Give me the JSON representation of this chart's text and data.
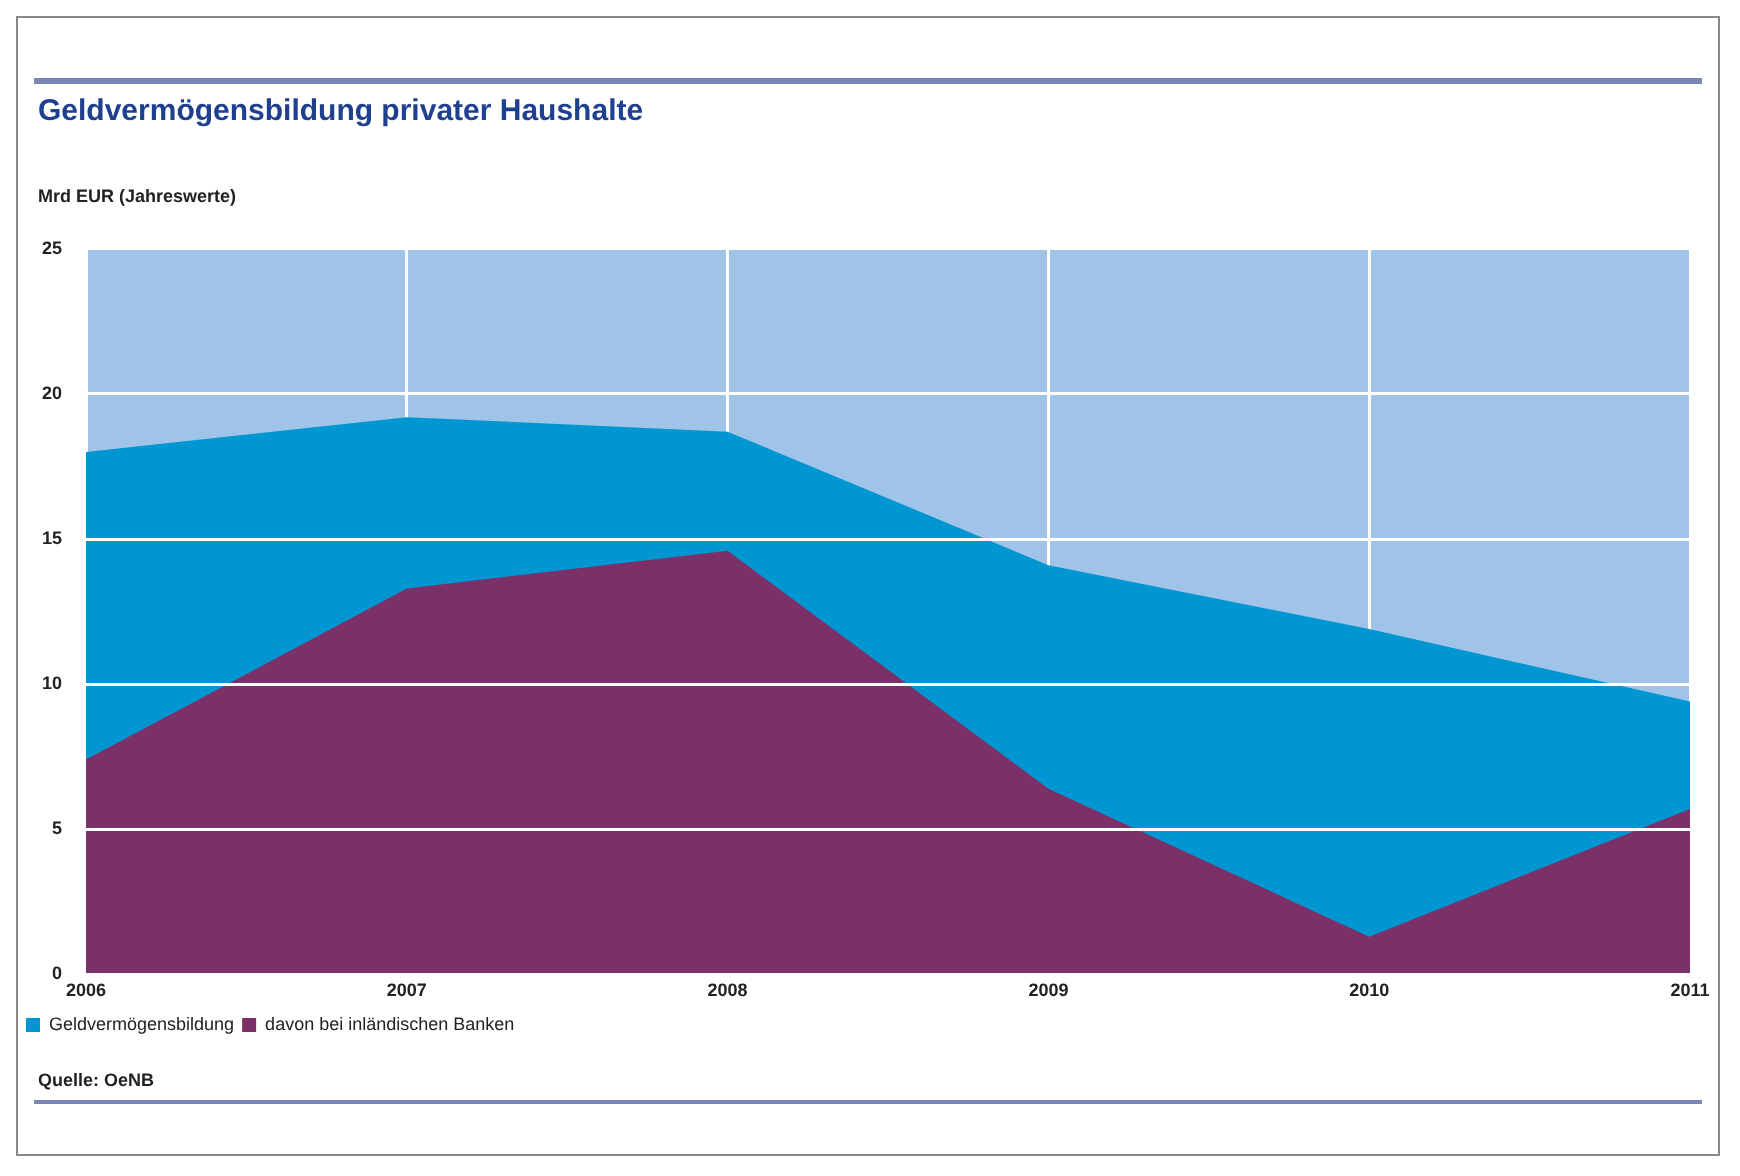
{
  "chart_data": {
    "type": "area",
    "title": "Geldvermögensbildung privater Haushalte",
    "ylabel": "Mrd EUR (Jahreswerte)",
    "categories": [
      "2006",
      "2007",
      "2008",
      "2009",
      "2010",
      "2011"
    ],
    "series": [
      {
        "name": "Geldvermögensbildung",
        "color": "#0096d2",
        "values": [
          18.0,
          19.2,
          18.7,
          14.1,
          11.9,
          9.4
        ]
      },
      {
        "name": "davon bei inländischen Banken",
        "color": "#7b3168",
        "values": [
          7.4,
          13.3,
          14.6,
          6.4,
          1.3,
          5.7
        ]
      }
    ],
    "ylim": [
      0,
      25
    ],
    "yticks": [
      0,
      5,
      10,
      15,
      20,
      25
    ],
    "grid": true,
    "legend": "bottom left",
    "annotations": [
      "Quelle: OeNB"
    ]
  }
}
